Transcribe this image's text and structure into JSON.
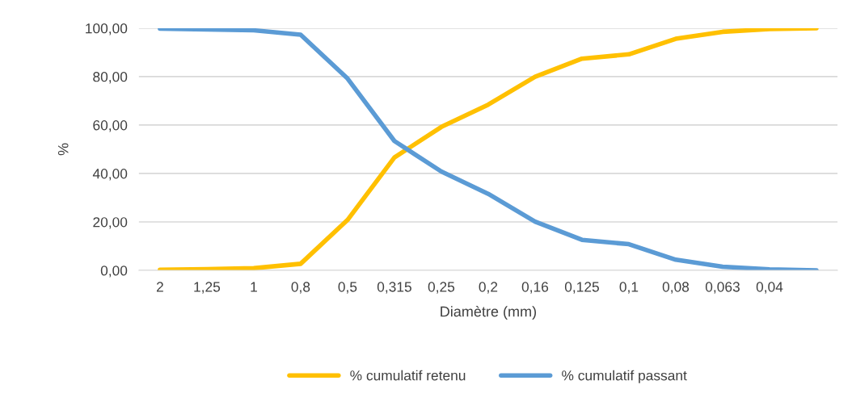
{
  "chart_data": {
    "type": "line",
    "xlabel": "Diamètre (mm)",
    "ylabel": "%",
    "categories": [
      "2",
      "1,25",
      "1",
      "0,8",
      "0,5",
      "0,315",
      "0,25",
      "0,2",
      "0,16",
      "0,125",
      "0,1",
      "0,08",
      "0,063",
      "0,04",
      null
    ],
    "series": [
      {
        "name": "% cumulatif retenu",
        "color": "#ffc000",
        "values": [
          0.2,
          0.5,
          0.9,
          2.7,
          20.8,
          46.6,
          59.2,
          68.4,
          79.9,
          87.4,
          89.2,
          95.6,
          98.5,
          99.6,
          100.0
        ]
      },
      {
        "name": "% cumulatif passant",
        "color": "#5b9bd5",
        "values": [
          99.8,
          99.5,
          99.1,
          97.3,
          79.2,
          53.4,
          40.8,
          31.6,
          20.1,
          12.6,
          10.8,
          4.4,
          1.5,
          0.4,
          0.0
        ]
      }
    ],
    "ylim": [
      0,
      100
    ],
    "yticks": [
      {
        "value": 0,
        "label": "0,00"
      },
      {
        "value": 20,
        "label": "20,00"
      },
      {
        "value": 40,
        "label": "40,00"
      },
      {
        "value": 60,
        "label": "60,00"
      },
      {
        "value": 80,
        "label": "80,00"
      },
      {
        "value": 100,
        "label": "100,00"
      }
    ],
    "grid": "y",
    "legend": "bottom",
    "marker": "none",
    "line_style": "solid"
  }
}
